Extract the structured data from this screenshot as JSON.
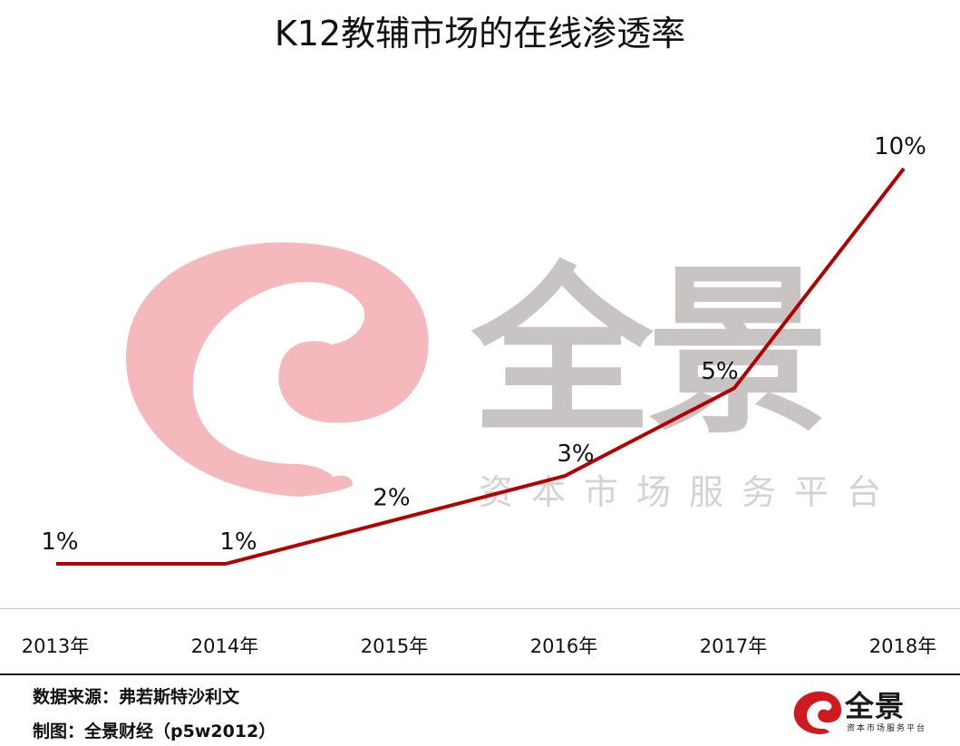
{
  "title": "K12教辅市场的在线渗透率",
  "chart_data": {
    "type": "line",
    "title": "K12教辅市场的在线渗透率",
    "categories": [
      "2013年",
      "2014年",
      "2015年",
      "2016年",
      "2017年",
      "2018年"
    ],
    "series": [
      {
        "values": [
          1,
          1,
          2,
          3,
          5,
          10
        ]
      }
    ],
    "data_labels": [
      "1%",
      "1%",
      "2%",
      "3%",
      "5%",
      "10%"
    ],
    "value_unit": "%",
    "ylim": [
      0.5,
      10.5
    ],
    "grid": false,
    "legend": "none",
    "line_color": "#b30000"
  },
  "footer": {
    "source": "数据来源：弗若斯特沙利文",
    "credit": "制图：全景财经（p5w2012）"
  },
  "watermark": {
    "name": "全景",
    "tagline": "资本市场服务平台",
    "swirl_color": "#f5b8bc",
    "text_color": "#c9c4c4"
  },
  "logo": {
    "name": "全景",
    "tagline": "资本市场服务平台",
    "icon": "swirl-logo-icon",
    "icon_color": "#d11a1f"
  }
}
